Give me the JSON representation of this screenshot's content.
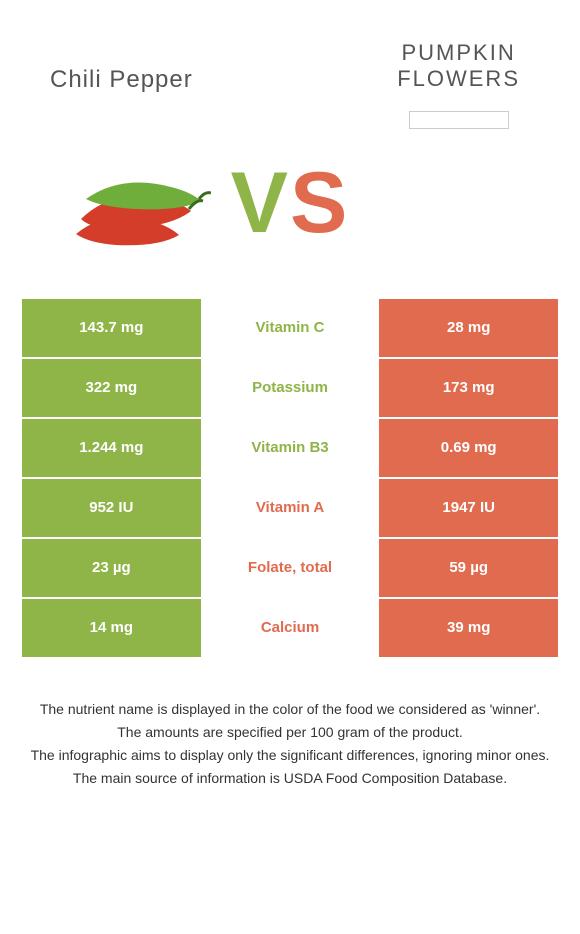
{
  "colors": {
    "left": "#8fb447",
    "right": "#e16b4e",
    "row_border": "#ffffff"
  },
  "header": {
    "left_title": "Chili pepper",
    "right_title": "PUMPKIN\nFLOWERS"
  },
  "vs": {
    "v": "V",
    "s": "S"
  },
  "rows": [
    {
      "left": "143.7 mg",
      "mid": "Vitamin C",
      "right": "28 mg",
      "winner": "left"
    },
    {
      "left": "322 mg",
      "mid": "Potassium",
      "right": "173 mg",
      "winner": "left"
    },
    {
      "left": "1.244 mg",
      "mid": "Vitamin B3",
      "right": "0.69 mg",
      "winner": "left"
    },
    {
      "left": "952 IU",
      "mid": "Vitamin A",
      "right": "1947 IU",
      "winner": "right"
    },
    {
      "left": "23 µg",
      "mid": "Folate, total",
      "right": "59 µg",
      "winner": "right"
    },
    {
      "left": "14 mg",
      "mid": "Calcium",
      "right": "39 mg",
      "winner": "right"
    }
  ],
  "footnotes": [
    "The nutrient name is displayed in the color of the food we considered as 'winner'.",
    "The amounts are specified per 100 gram of the product.",
    "The infographic aims to display only the significant differences, ignoring minor ones.",
    "The main source of information is USDA Food Composition Database."
  ]
}
